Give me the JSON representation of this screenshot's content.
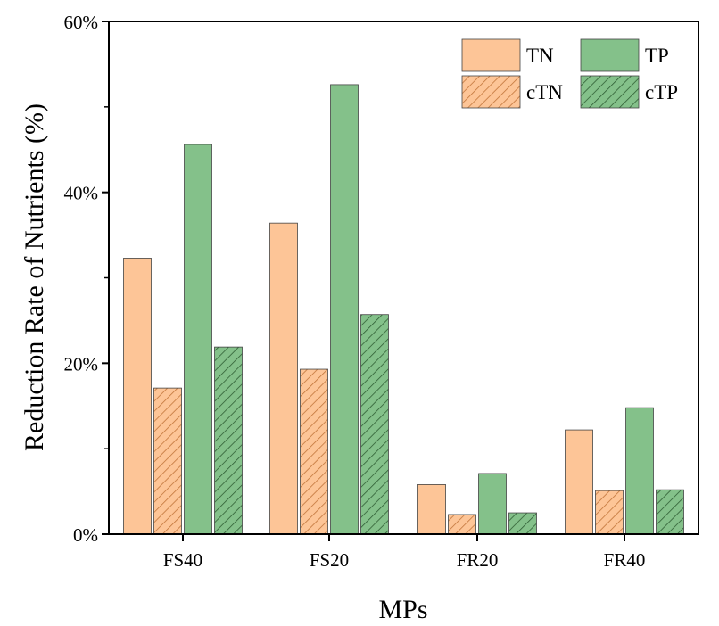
{
  "chart_data": {
    "type": "bar",
    "categories": [
      "FS40",
      "FS20",
      "FR20",
      "FR40"
    ],
    "series": [
      {
        "name": "TN",
        "values": [
          32.3,
          36.4,
          5.8,
          12.2
        ],
        "color": "#fdc597",
        "pattern": "solid"
      },
      {
        "name": "cTN",
        "values": [
          17.1,
          19.3,
          2.3,
          5.1
        ],
        "color": "#fdc597",
        "pattern": "hatch"
      },
      {
        "name": "TP",
        "values": [
          45.6,
          52.6,
          7.1,
          14.8
        ],
        "color": "#84c18a",
        "pattern": "solid"
      },
      {
        "name": "cTP",
        "values": [
          21.9,
          25.7,
          2.5,
          5.2
        ],
        "color": "#84c18a",
        "pattern": "hatch"
      }
    ],
    "legend_order": [
      "TN",
      "TP",
      "cTN",
      "cTP"
    ],
    "xlabel": "MPs",
    "ylabel": "Reduction Rate of Nutrients (%)",
    "ylim": [
      0,
      60
    ],
    "yticks": [
      "0%",
      "20%",
      "40%",
      "60%"
    ],
    "ytick_values": [
      0,
      20,
      40,
      60
    ],
    "legend_position": "top-right"
  }
}
